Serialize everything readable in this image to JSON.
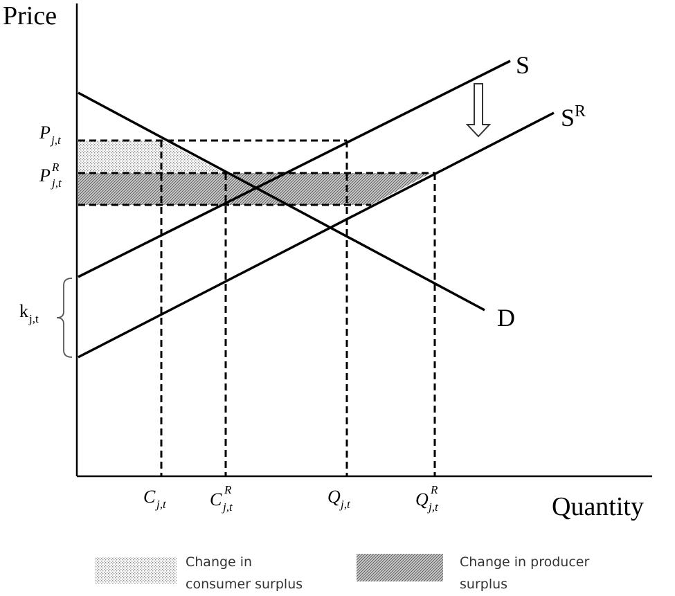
{
  "axes": {
    "y_title": "Price",
    "x_title": "Quantity"
  },
  "curves": {
    "supply": "S",
    "supply_reduced": "S",
    "supply_reduced_sup": "R",
    "demand": "D"
  },
  "price_labels": {
    "p": {
      "main": "P",
      "sup": "",
      "sub": "j,t"
    },
    "p_r": {
      "main": "P",
      "sup": "R",
      "sub": "j,t"
    }
  },
  "quantity_labels": {
    "c": {
      "main": "C",
      "sup": "",
      "sub": "j,t"
    },
    "c_r": {
      "main": "C",
      "sup": "R",
      "sub": "j,t"
    },
    "q": {
      "main": "Q",
      "sup": "",
      "sub": "j,t"
    },
    "q_r": {
      "main": "Q",
      "sup": "R",
      "sub": "j,t"
    }
  },
  "shift_label": {
    "main": "k",
    "sub": "j,t"
  },
  "legend": {
    "consumer": {
      "line1": "Change in",
      "line2": "consumer surplus"
    },
    "producer": {
      "line1": "Change in producer",
      "line2": "surplus"
    }
  }
}
